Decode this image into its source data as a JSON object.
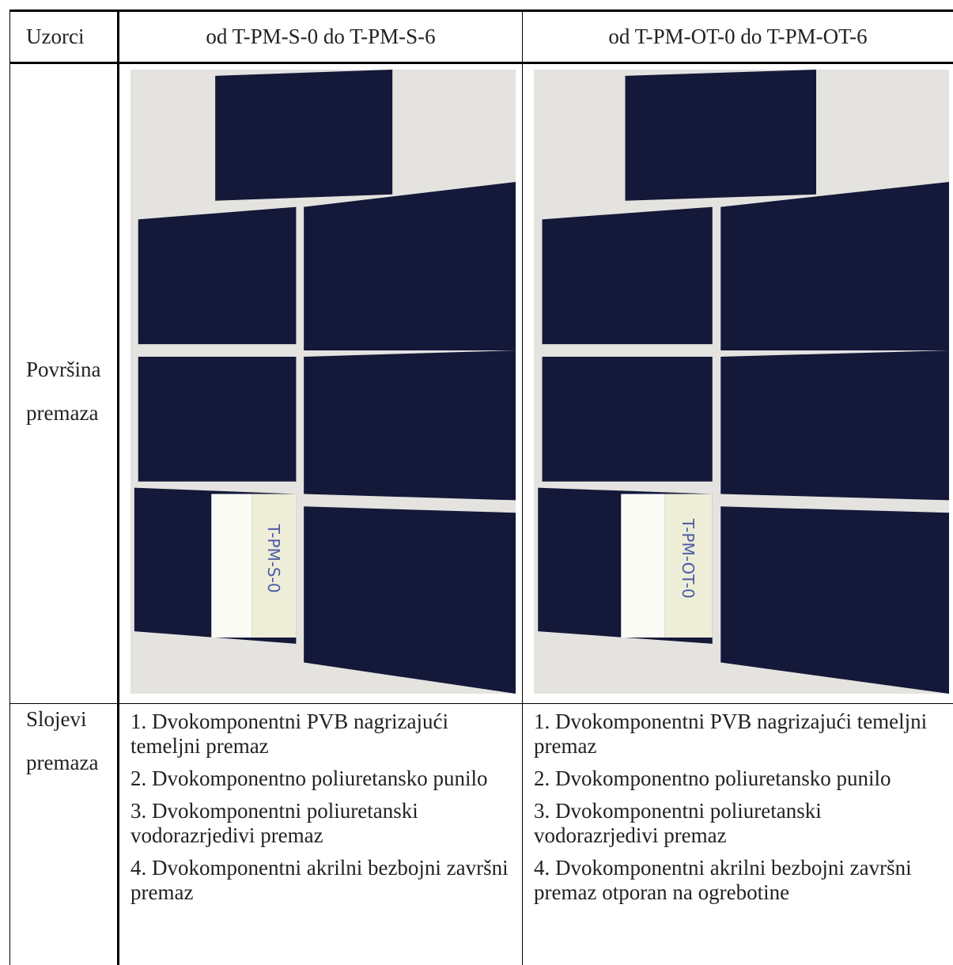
{
  "table": {
    "header": [
      "Uzorci",
      "od T-PM-S-0 do T-PM-S-6",
      "od T-PM-OT-0 do T-PM-OT-6"
    ],
    "surface": {
      "label": "Površina premaza",
      "photo_labels": [
        "T-PM-S-0",
        "T-PM-OT-0"
      ]
    },
    "layers": {
      "label": "Slojevi premaza",
      "columns": [
        [
          "1. Dvokomponentni PVB nagrizajući temeljni premaz",
          "2. Dvokomponentno poliuretansko punilo",
          "3. Dvokomponentni poliuretanski vodorazrjedivi premaz",
          "4. Dvokomponentni akrilni bezbojni završni premaz"
        ],
        [
          "1. Dvokomponentni PVB nagrizajući temeljni premaz",
          "2. Dvokomponentno poliuretansko punilo",
          "3. Dvokomponentni poliuretanski vodorazrjedivi premaz",
          "4. Dvokomponentni akrilni bezbojni završni premaz otporan na ogrebotine"
        ]
      ]
    }
  }
}
